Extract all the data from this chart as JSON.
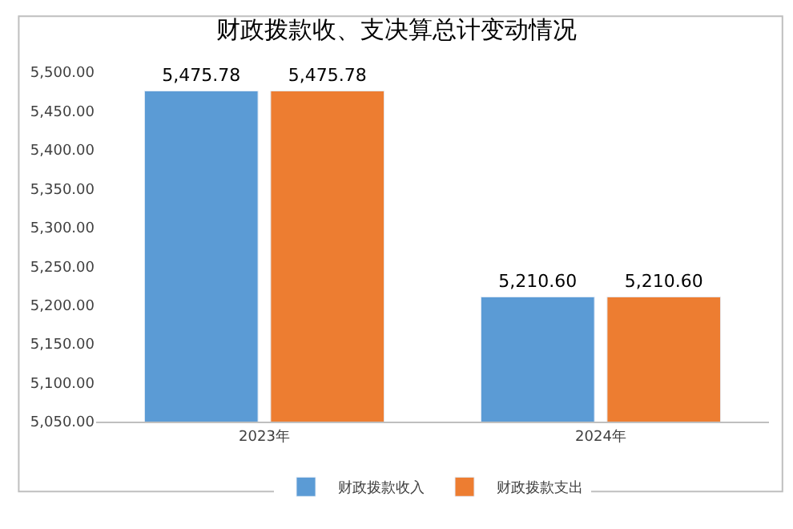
{
  "chart_data": {
    "type": "bar",
    "title": "财政拨款收、支决算总计变动情况",
    "categories": [
      "2023年",
      "2024年"
    ],
    "series": [
      {
        "name": "财政拨款收入",
        "color": "#5b9bd5",
        "values": [
          5475.78,
          5210.6
        ],
        "value_labels": [
          "5,475.78",
          "5,210.60"
        ]
      },
      {
        "name": "财政拨款支出",
        "color": "#ed7d31",
        "values": [
          5475.78,
          5210.6
        ],
        "value_labels": [
          "5,475.78",
          "5,210.60"
        ]
      }
    ],
    "ylim": [
      5050,
      5500
    ],
    "yticks": [
      {
        "value": 5050,
        "label": "5,050.00"
      },
      {
        "value": 5100,
        "label": "5,100.00"
      },
      {
        "value": 5150,
        "label": "5,150.00"
      },
      {
        "value": 5200,
        "label": "5,200.00"
      },
      {
        "value": 5250,
        "label": "5,250.00"
      },
      {
        "value": 5300,
        "label": "5,300.00"
      },
      {
        "value": 5350,
        "label": "5,350.00"
      },
      {
        "value": 5400,
        "label": "5,400.00"
      },
      {
        "value": 5450,
        "label": "5,450.00"
      },
      {
        "value": 5500,
        "label": "5,500.00"
      }
    ],
    "grid": false,
    "legend": "bottom"
  }
}
